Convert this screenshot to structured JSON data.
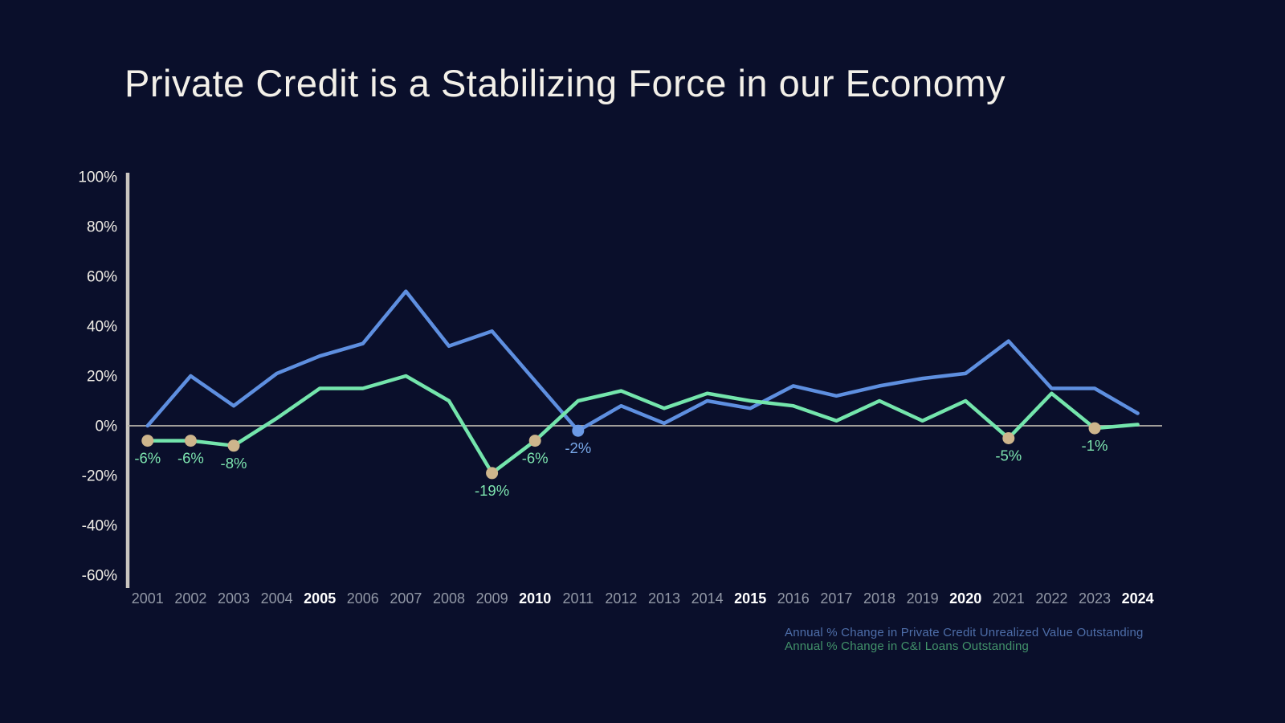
{
  "title": "Private Credit is a Stabilizing Force in our Economy",
  "chart_data": {
    "type": "line",
    "x": [
      2001,
      2002,
      2003,
      2004,
      2005,
      2006,
      2007,
      2008,
      2009,
      2010,
      2011,
      2012,
      2013,
      2014,
      2015,
      2016,
      2017,
      2018,
      2019,
      2020,
      2021,
      2022,
      2023,
      2024
    ],
    "bold_years": [
      2005,
      2010,
      2015,
      2020,
      2024
    ],
    "ylim": [
      -60,
      100
    ],
    "ytick_step": 20,
    "ytick_suffix": "%",
    "grid": "zero-line-only",
    "legend_position": "bottom-right",
    "series": [
      {
        "name": "Annual % Change in Private Credit Unrealized Value Outstanding",
        "color": "#5e8fe0",
        "marker_color": "#6b9ae6",
        "label_color": "#79a9ea",
        "values": [
          0,
          20,
          8,
          21,
          28,
          33,
          54,
          32,
          38,
          18,
          -2,
          8,
          1,
          10,
          7,
          16,
          12,
          16,
          19,
          21,
          34,
          15,
          15,
          5
        ],
        "labeled_points": [
          {
            "year": 2011,
            "text": "-2%"
          }
        ]
      },
      {
        "name": "Annual % Change in C&I Loans Outstanding",
        "color": "#74e5ac",
        "marker_color": "#cdb58c",
        "label_color": "#7de4af",
        "values": [
          -6,
          -6,
          -8,
          3,
          15,
          15,
          20,
          10,
          -19,
          -6,
          10,
          14,
          7,
          13,
          10,
          8,
          2,
          10,
          2,
          10,
          -5,
          13,
          -1,
          0.5
        ],
        "labeled_points": [
          {
            "year": 2001,
            "text": "-6%"
          },
          {
            "year": 2002,
            "text": "-6%"
          },
          {
            "year": 2003,
            "text": "-8%"
          },
          {
            "year": 2009,
            "text": "-19%"
          },
          {
            "year": 2010,
            "text": "-6%"
          },
          {
            "year": 2021,
            "text": "-5%"
          },
          {
            "year": 2023,
            "text": "-1%"
          }
        ]
      }
    ],
    "axis_colors": {
      "y_axis_line": "#c9c5bf",
      "zero_line": "#b2aea7",
      "y_tick_text": "#f0ede6",
      "x_tick_text": "#9298a6",
      "x_tick_text_bold": "#ffffff"
    }
  }
}
